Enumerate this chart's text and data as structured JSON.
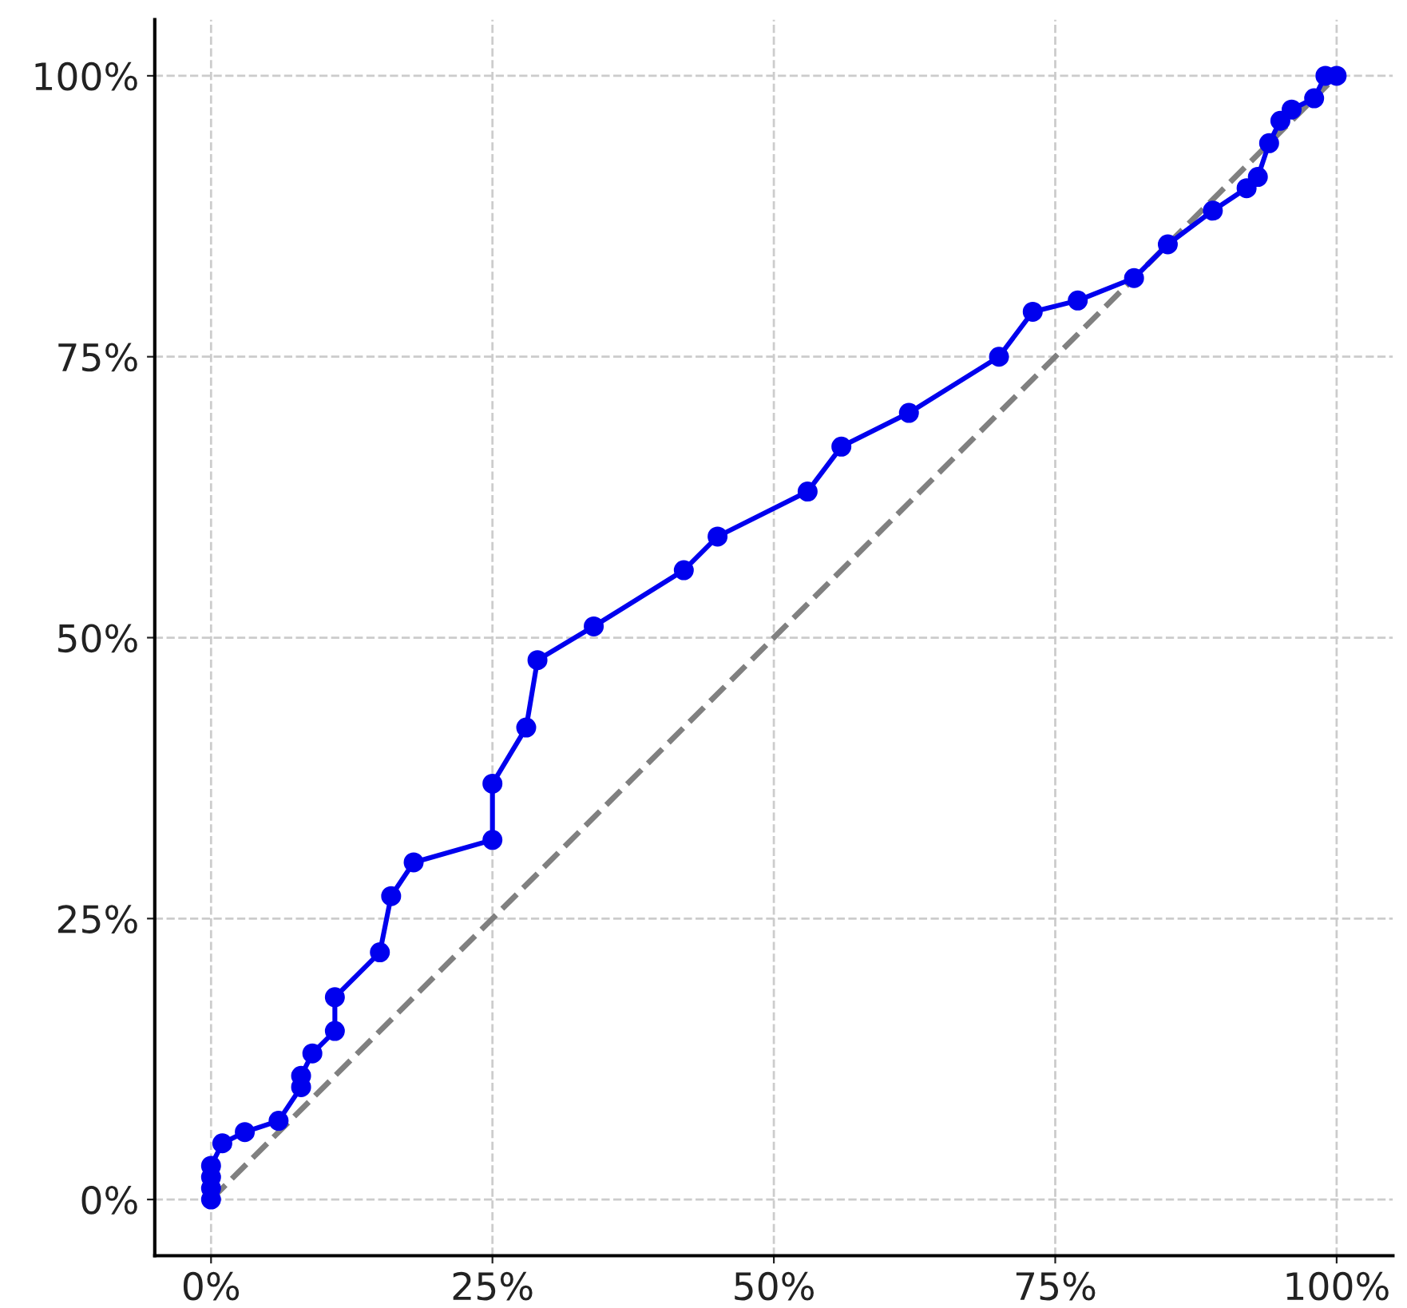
{
  "chart_data": {
    "type": "line",
    "xlim": [
      -5,
      105
    ],
    "ylim": [
      -5,
      105
    ],
    "xticks": [
      {
        "value": 0,
        "label": "0%"
      },
      {
        "value": 25,
        "label": "25%"
      },
      {
        "value": 50,
        "label": "50%"
      },
      {
        "value": 75,
        "label": "75%"
      },
      {
        "value": 100,
        "label": "100%"
      }
    ],
    "yticks": [
      {
        "value": 0,
        "label": "0%"
      },
      {
        "value": 25,
        "label": "25%"
      },
      {
        "value": 50,
        "label": "50%"
      },
      {
        "value": 75,
        "label": "75%"
      },
      {
        "value": 100,
        "label": "100%"
      }
    ],
    "grid": true,
    "series": [
      {
        "color": "#0000ee",
        "marker": "circle",
        "line_style": "solid",
        "x": [
          0,
          0,
          0,
          0,
          1,
          3,
          6,
          8,
          8,
          9,
          11,
          11,
          15,
          16,
          18,
          25,
          25,
          28,
          29,
          34,
          42,
          45,
          53,
          56,
          62,
          70,
          73,
          77,
          82,
          85,
          89,
          92,
          93,
          94,
          95,
          96,
          98,
          99,
          100
        ],
        "values": [
          0,
          1,
          2,
          3,
          5,
          6,
          7,
          10,
          11,
          13,
          15,
          18,
          22,
          27,
          30,
          32,
          37,
          42,
          48,
          51,
          56,
          59,
          63,
          67,
          70,
          75,
          79,
          80,
          82,
          85,
          88,
          90,
          91,
          94,
          96,
          97,
          98,
          100,
          100
        ]
      },
      {
        "color": "#808080",
        "marker": "none",
        "line_style": "dashed",
        "x": [
          0,
          100
        ],
        "values": [
          0,
          100
        ]
      }
    ]
  }
}
